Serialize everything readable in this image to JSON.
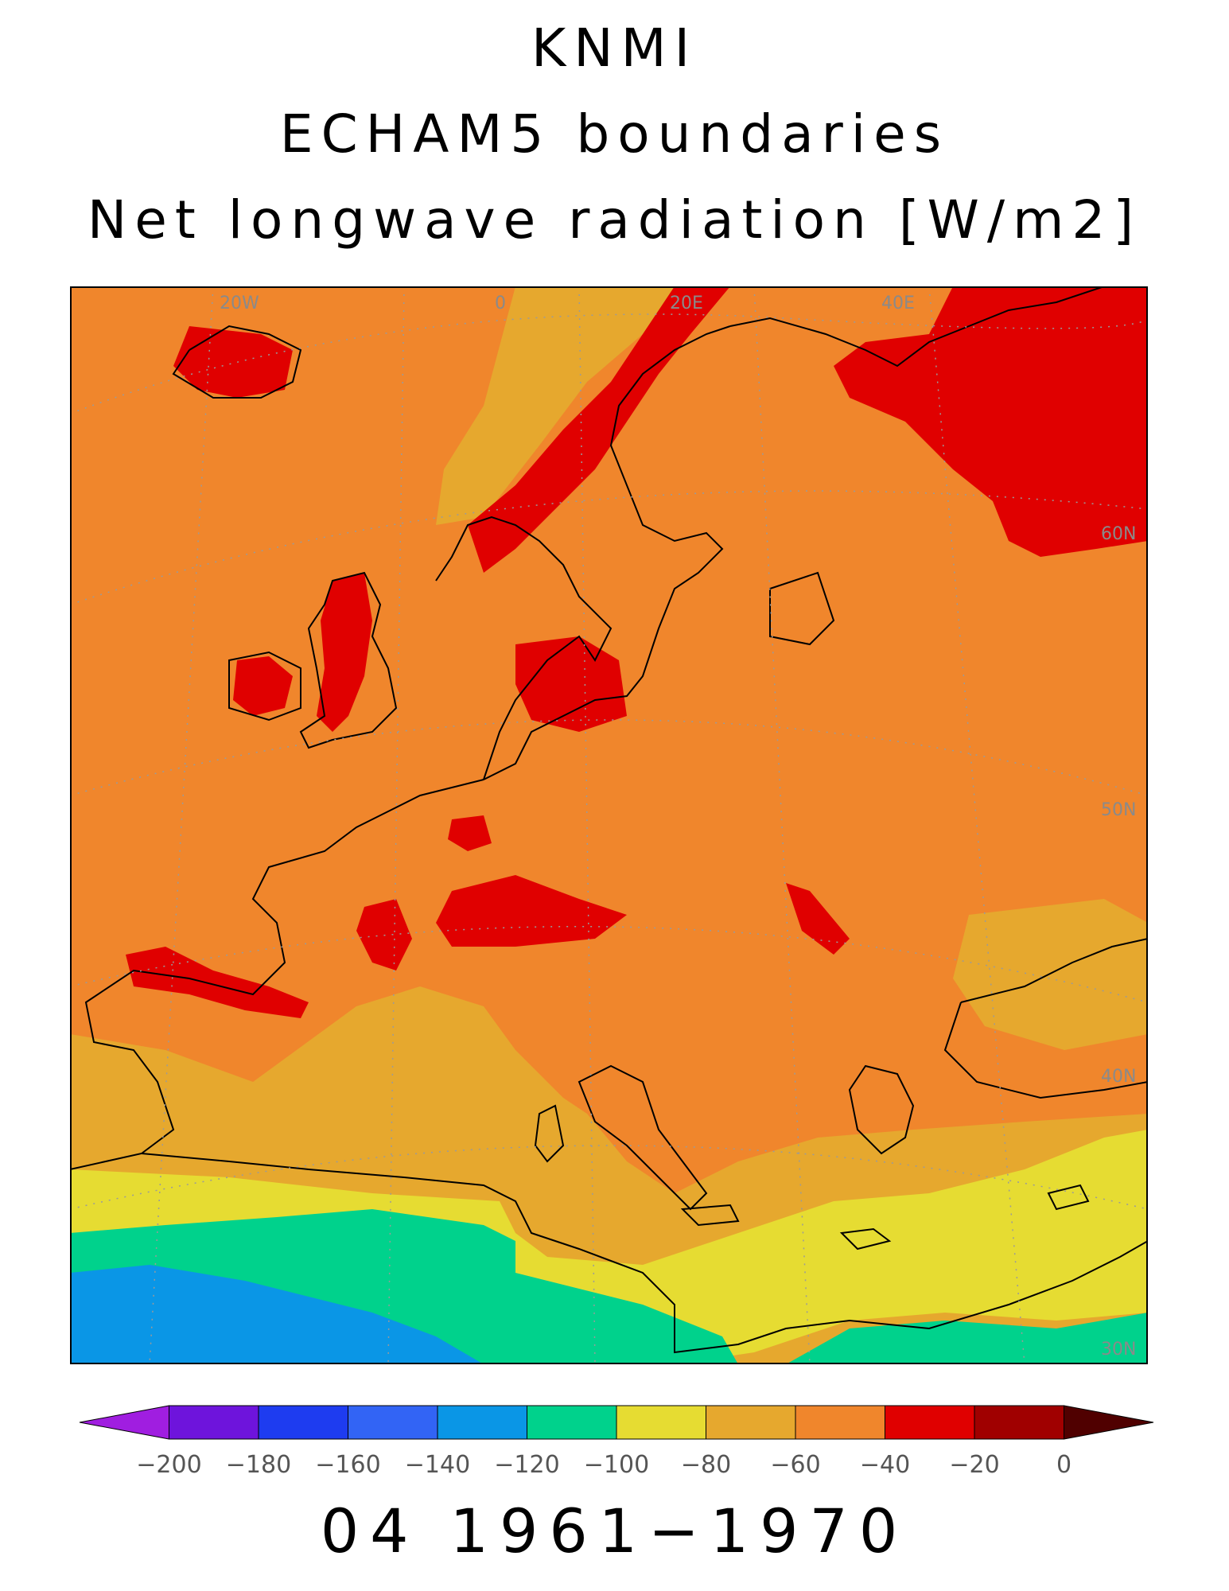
{
  "title": {
    "line1": "KNMI",
    "line2": "ECHAM5 boundaries",
    "line3": "Net longwave radiation [W/m2]"
  },
  "footer": {
    "period": "04 1961−1970"
  },
  "map": {
    "graticule_labels": {
      "lon": [
        "20W",
        "0",
        "20E",
        "40E"
      ],
      "lat": [
        "60N",
        "50N",
        "40N",
        "30N"
      ]
    },
    "colors": {
      "land_north": "#f0862c",
      "high_ground": "#e00000",
      "sea_warm": "#e6a82e",
      "sea_south": "#e6dc32",
      "ocean_band": "#00d28c",
      "ocean_deep": "#0a96e6"
    }
  },
  "colorbar": {
    "levels": [
      "−200",
      "−180",
      "−160",
      "−140",
      "−120",
      "−100",
      "−80",
      "−60",
      "−40",
      "−20",
      "0"
    ],
    "colors": [
      "#a01ee0",
      "#6e14dc",
      "#1e3cf0",
      "#3264f5",
      "#0a96e6",
      "#00d28c",
      "#e6dc32",
      "#e6a82e",
      "#f0862c",
      "#e00000",
      "#a00000",
      "#500000"
    ]
  }
}
